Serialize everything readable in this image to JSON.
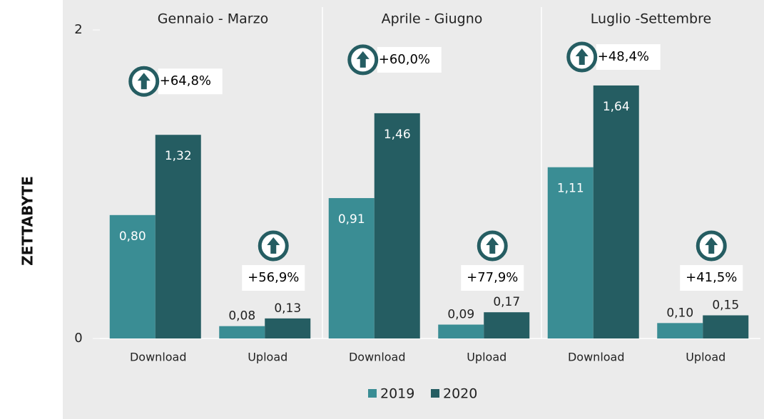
{
  "chart_data": {
    "type": "bar",
    "ylabel": "ZETTABYTE",
    "ylim": [
      0,
      2
    ],
    "yticks": [
      0,
      2
    ],
    "groups": [
      "Gennaio - Marzo",
      "Aprile - Giugno",
      "Luglio -Settembre"
    ],
    "categories": [
      "Download",
      "Upload",
      "Download",
      "Upload",
      "Download",
      "Upload"
    ],
    "series": [
      {
        "name": "2019",
        "color": "#3a8d94",
        "values": [
          0.8,
          0.08,
          0.91,
          0.09,
          1.11,
          0.1
        ],
        "value_labels": [
          "0,80",
          "0,08",
          "0,91",
          "0,09",
          "1,11",
          "0,10"
        ]
      },
      {
        "name": "2020",
        "color": "#255d62",
        "values": [
          1.32,
          0.13,
          1.46,
          0.17,
          1.64,
          0.15
        ],
        "value_labels": [
          "1,32",
          "0,13",
          "1,46",
          "0,17",
          "1,64",
          "0,15"
        ]
      }
    ],
    "annotations": [
      "+64,8%",
      "+56,9%",
      "+60,0%",
      "+77,9%",
      "+48,4%",
      "+41,5%"
    ]
  }
}
